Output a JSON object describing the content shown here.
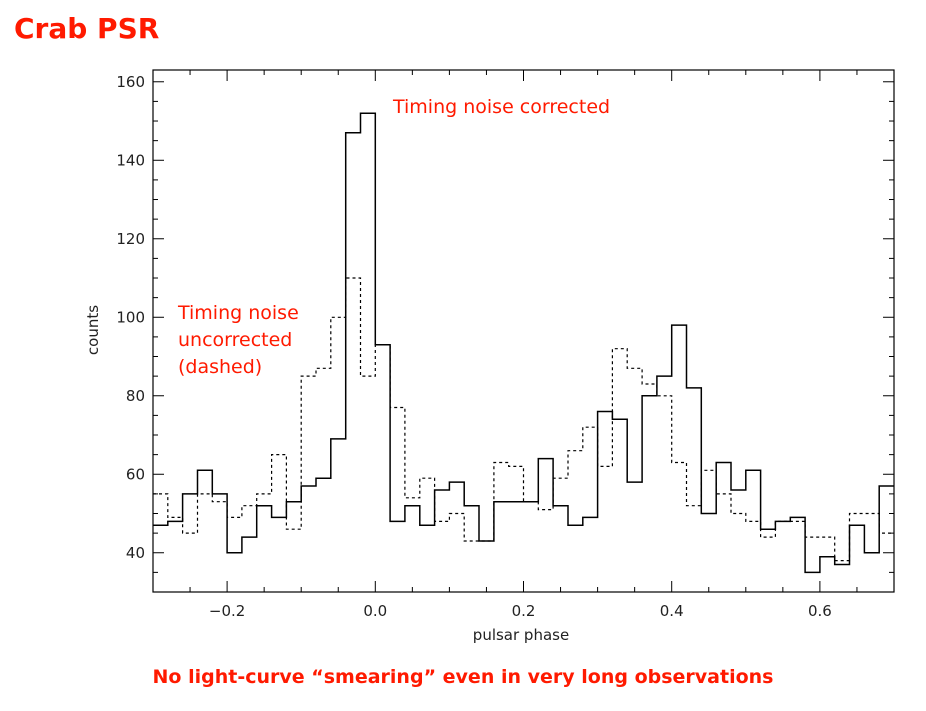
{
  "page_title": "Crab PSR",
  "footer_caption": "No light-curve “smearing” even in very long observations",
  "annotations": {
    "corrected": "Timing noise corrected",
    "uncorrected_lines": [
      "Timing noise",
      "uncorrected",
      "(dashed)"
    ]
  },
  "colors": {
    "annotation": "#ff1a00",
    "axis": "#000000"
  },
  "chart_data": {
    "type": "line",
    "title": "",
    "xlabel": "pulsar phase",
    "ylabel": "counts",
    "xlim": [
      -0.3,
      0.7
    ],
    "ylim": [
      30,
      163
    ],
    "xticks": [
      -0.2,
      0.0,
      0.2,
      0.4,
      0.6
    ],
    "xtick_labels": [
      "−0.2",
      "0.0",
      "0.2",
      "0.4",
      "0.6"
    ],
    "yticks": [
      40,
      60,
      80,
      100,
      120,
      140,
      160
    ],
    "ytick_labels": [
      "40",
      "60",
      "80",
      "100",
      "120",
      "140",
      "160"
    ],
    "bin_width": 0.02,
    "grid": false,
    "series": [
      {
        "name": "Timing noise corrected",
        "style": "solid",
        "x": [
          -0.29,
          -0.27,
          -0.25,
          -0.23,
          -0.21,
          -0.19,
          -0.17,
          -0.15,
          -0.13,
          -0.11,
          -0.09,
          -0.07,
          -0.05,
          -0.03,
          -0.01,
          0.01,
          0.03,
          0.05,
          0.07,
          0.09,
          0.11,
          0.13,
          0.15,
          0.17,
          0.19,
          0.21,
          0.23,
          0.25,
          0.27,
          0.29,
          0.31,
          0.33,
          0.35,
          0.37,
          0.39,
          0.41,
          0.43,
          0.45,
          0.47,
          0.49,
          0.51,
          0.53,
          0.55,
          0.57,
          0.59,
          0.61,
          0.63,
          0.65,
          0.67,
          0.69
        ],
        "values": [
          47,
          48,
          55,
          61,
          55,
          40,
          44,
          52,
          49,
          53,
          57,
          59,
          69,
          147,
          152,
          93,
          48,
          52,
          47,
          56,
          58,
          52,
          43,
          53,
          53,
          53,
          64,
          52,
          47,
          49,
          76,
          74,
          58,
          80,
          85,
          98,
          82,
          50,
          63,
          56,
          61,
          46,
          48,
          49,
          35,
          39,
          37,
          47,
          40,
          57
        ]
      },
      {
        "name": "Timing noise uncorrected (dashed)",
        "style": "dashed",
        "x": [
          -0.29,
          -0.27,
          -0.25,
          -0.23,
          -0.21,
          -0.19,
          -0.17,
          -0.15,
          -0.13,
          -0.11,
          -0.09,
          -0.07,
          -0.05,
          -0.03,
          -0.01,
          0.01,
          0.03,
          0.05,
          0.07,
          0.09,
          0.11,
          0.13,
          0.15,
          0.17,
          0.19,
          0.21,
          0.23,
          0.25,
          0.27,
          0.29,
          0.31,
          0.33,
          0.35,
          0.37,
          0.39,
          0.41,
          0.43,
          0.45,
          0.47,
          0.49,
          0.51,
          0.53,
          0.55,
          0.57,
          0.59,
          0.61,
          0.63,
          0.65,
          0.67,
          0.69
        ],
        "values": [
          55,
          49,
          45,
          55,
          53,
          49,
          52,
          55,
          65,
          46,
          85,
          87,
          100,
          110,
          85,
          93,
          77,
          54,
          59,
          48,
          50,
          43,
          43,
          63,
          62,
          53,
          51,
          59,
          66,
          72,
          62,
          92,
          87,
          83,
          80,
          63,
          52,
          61,
          55,
          50,
          48,
          44,
          48,
          48,
          44,
          44,
          38,
          50,
          50,
          45
        ]
      }
    ]
  }
}
